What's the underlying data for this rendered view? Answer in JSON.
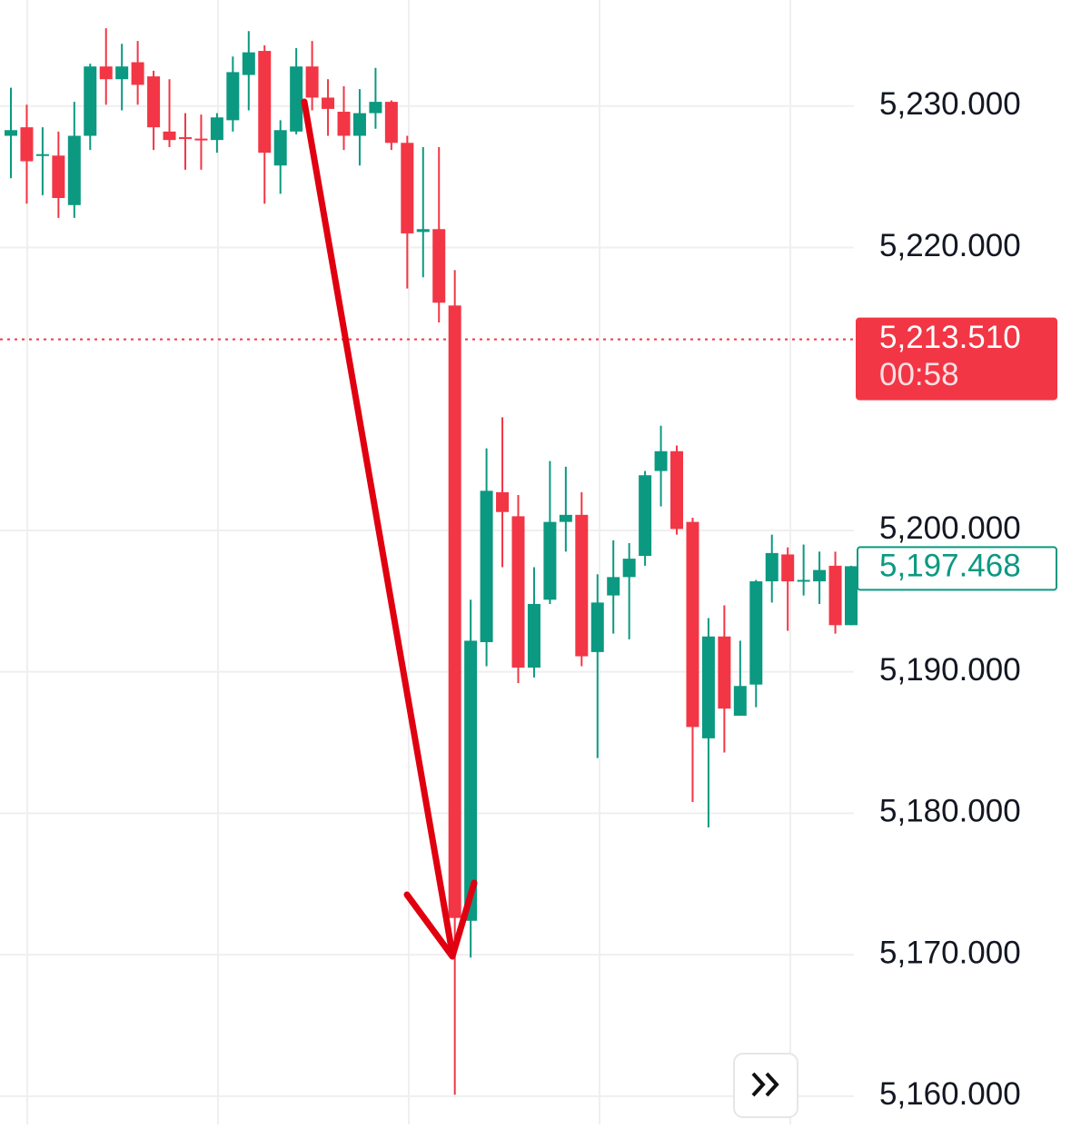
{
  "chart_data": {
    "type": "candlestick",
    "up_color": "#0b9981",
    "down_color": "#f23645",
    "open": [
      5227.9,
      5228.5,
      5226.5,
      5226.5,
      5223.0,
      5227.9,
      5232.8,
      5231.9,
      5233.1,
      5232.1,
      5228.2,
      5227.8,
      5227.7,
      5227.6,
      5229.0,
      5232.2,
      5233.9,
      5225.8,
      5228.2,
      5232.8,
      5230.6,
      5229.6,
      5227.9,
      5229.5,
      5230.3,
      5227.4,
      5221.1,
      5221.3,
      5215.9,
      5172.4,
      5192.1,
      5202.7,
      5201.0,
      5190.3,
      5195.1,
      5200.6,
      5201.1,
      5191.4,
      5195.4,
      5196.7,
      5198.2,
      5204.2,
      5205.6,
      5200.6,
      5185.3,
      5192.5,
      5186.9,
      5189.1,
      5196.4,
      5198.3,
      5196.4,
      5196.4,
      5197.5,
      5193.3
    ],
    "high": [
      5231.3,
      5230.1,
      5228.5,
      5228.2,
      5230.3,
      5233.0,
      5235.5,
      5234.4,
      5234.6,
      5232.5,
      5231.9,
      5229.5,
      5229.4,
      5229.5,
      5233.5,
      5235.3,
      5234.3,
      5229.0,
      5234.1,
      5234.6,
      5231.9,
      5231.4,
      5231.2,
      5232.7,
      5230.4,
      5227.9,
      5227.1,
      5227.1,
      5218.4,
      5195.1,
      5205.8,
      5208.0,
      5202.5,
      5197.4,
      5204.9,
      5204.5,
      5202.7,
      5196.9,
      5199.3,
      5199.1,
      5204.2,
      5207.4,
      5206.0,
      5200.9,
      5193.8,
      5194.7,
      5192.2,
      5196.5,
      5199.7,
      5198.8,
      5199.0,
      5198.5,
      5198.5,
      5197.5
    ],
    "low": [
      5224.9,
      5223.1,
      5223.7,
      5222.1,
      5222.1,
      5226.9,
      5230.1,
      5229.7,
      5230.1,
      5226.9,
      5227.1,
      5225.5,
      5225.5,
      5226.7,
      5228.2,
      5229.7,
      5223.1,
      5223.8,
      5228.0,
      5229.7,
      5227.9,
      5226.9,
      5225.8,
      5228.4,
      5226.9,
      5217.1,
      5217.9,
      5214.7,
      5160.1,
      5169.8,
      5190.4,
      5197.4,
      5189.2,
      5189.6,
      5194.8,
      5198.5,
      5190.4,
      5183.9,
      5192.7,
      5192.3,
      5197.5,
      5201.7,
      5199.7,
      5180.8,
      5179.0,
      5184.3,
      5186.9,
      5187.5,
      5194.9,
      5192.9,
      5195.4,
      5194.8,
      5192.7,
      5193.3
    ],
    "close": [
      5228.3,
      5226.1,
      5226.6,
      5223.5,
      5227.9,
      5232.8,
      5231.9,
      5232.8,
      5231.5,
      5228.5,
      5227.6,
      5227.7,
      5227.6,
      5229.2,
      5232.4,
      5233.8,
      5226.7,
      5228.3,
      5232.8,
      5230.6,
      5229.8,
      5227.9,
      5229.5,
      5230.3,
      5227.4,
      5221.0,
      5221.3,
      5216.1,
      5172.6,
      5192.2,
      5202.8,
      5201.3,
      5190.3,
      5194.8,
      5200.6,
      5201.1,
      5191.1,
      5194.9,
      5196.7,
      5198.0,
      5203.9,
      5205.6,
      5200.1,
      5186.1,
      5192.5,
      5187.4,
      5189.0,
      5196.4,
      5198.4,
      5196.4,
      5196.5,
      5197.2,
      5193.3,
      5197.468
    ],
    "ylim": [
      5158.0,
      5237.5
    ],
    "yticks": [
      {
        "value": 5160,
        "label": "5,160.000"
      },
      {
        "value": 5170,
        "label": "5,170.000"
      },
      {
        "value": 5180,
        "label": "5,180.000"
      },
      {
        "value": 5190,
        "label": "5,190.000"
      },
      {
        "value": 5200,
        "label": "5,200.000"
      },
      {
        "value": 5220,
        "label": "5,220.000"
      },
      {
        "value": 5230,
        "label": "5,230.000"
      }
    ],
    "grid": true,
    "last_price": {
      "value": 5213.51,
      "label": "5,213.510"
    },
    "countdown": "00:58",
    "current_price": {
      "value": 5197.468,
      "label": "5,197.468"
    }
  }
}
